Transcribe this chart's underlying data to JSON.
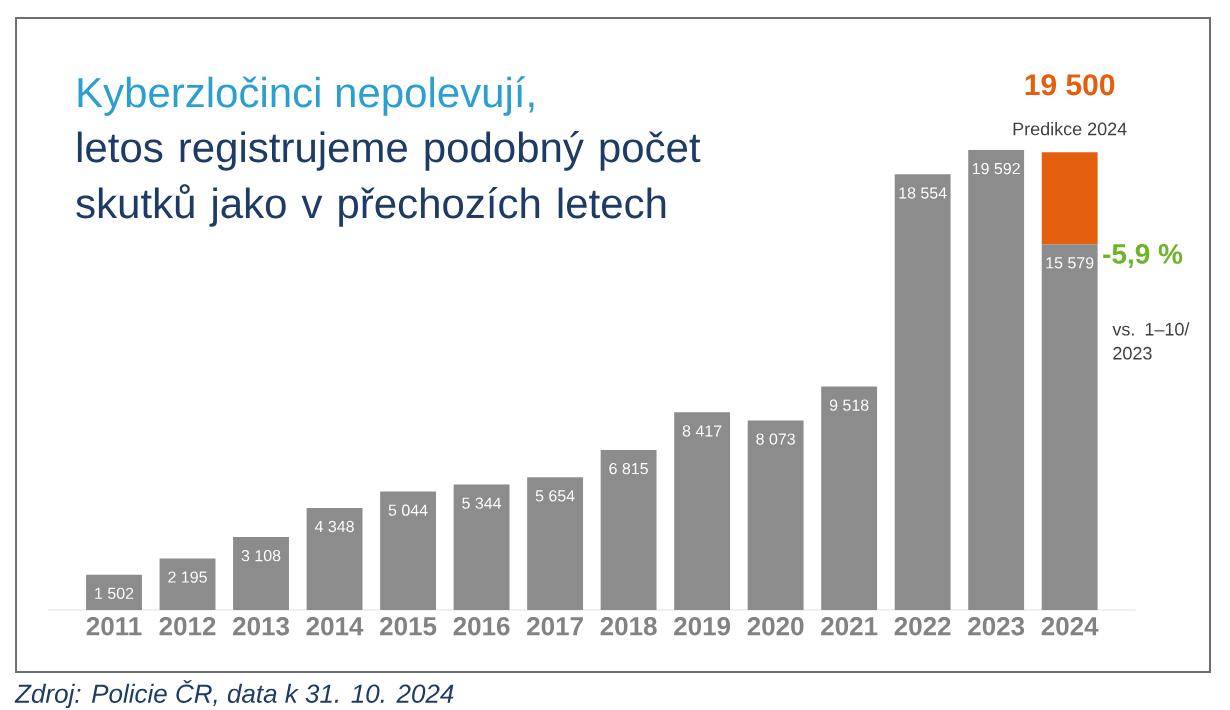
{
  "chart_data": {
    "type": "bar",
    "title": "Kyberzločinci nepolevují,",
    "subtitle": "letos registrujeme podobný počet skutků jako v přechozích letech",
    "categories": [
      "2011",
      "2012",
      "2013",
      "2014",
      "2015",
      "2016",
      "2017",
      "2018",
      "2019",
      "2020",
      "2021",
      "2022",
      "2023",
      "2024"
    ],
    "series": [
      {
        "color": "#8c8c8c",
        "values": [
          1502,
          2195,
          3108,
          4348,
          5044,
          5344,
          5654,
          6815,
          8417,
          8073,
          9518,
          18554,
          19592,
          15579
        ],
        "value_labels": [
          "1 502",
          "2 195",
          "3 108",
          "4 348",
          "5 044",
          "5 344",
          "5 654",
          "6 815",
          "8 417",
          "8 073",
          "9 518",
          "18 554",
          "19 592",
          "15 579"
        ]
      },
      {
        "color": "#e35f0e",
        "values": [
          null,
          null,
          null,
          null,
          null,
          null,
          null,
          null,
          null,
          null,
          null,
          null,
          null,
          3921
        ]
      }
    ],
    "totals": [
      null,
      null,
      null,
      null,
      null,
      null,
      null,
      null,
      null,
      null,
      null,
      null,
      null,
      "19 500"
    ],
    "annotations": [
      {
        "text": "Predikce 2024",
        "x": "2024",
        "y": 19500
      },
      {
        "text": "-5,9 %",
        "x": "2024",
        "y": 15579
      },
      "vs. 1–10/ 2023",
      "Zdroj: Policie ČR, data k 31. 10. 2024"
    ],
    "stacked": true
  }
}
